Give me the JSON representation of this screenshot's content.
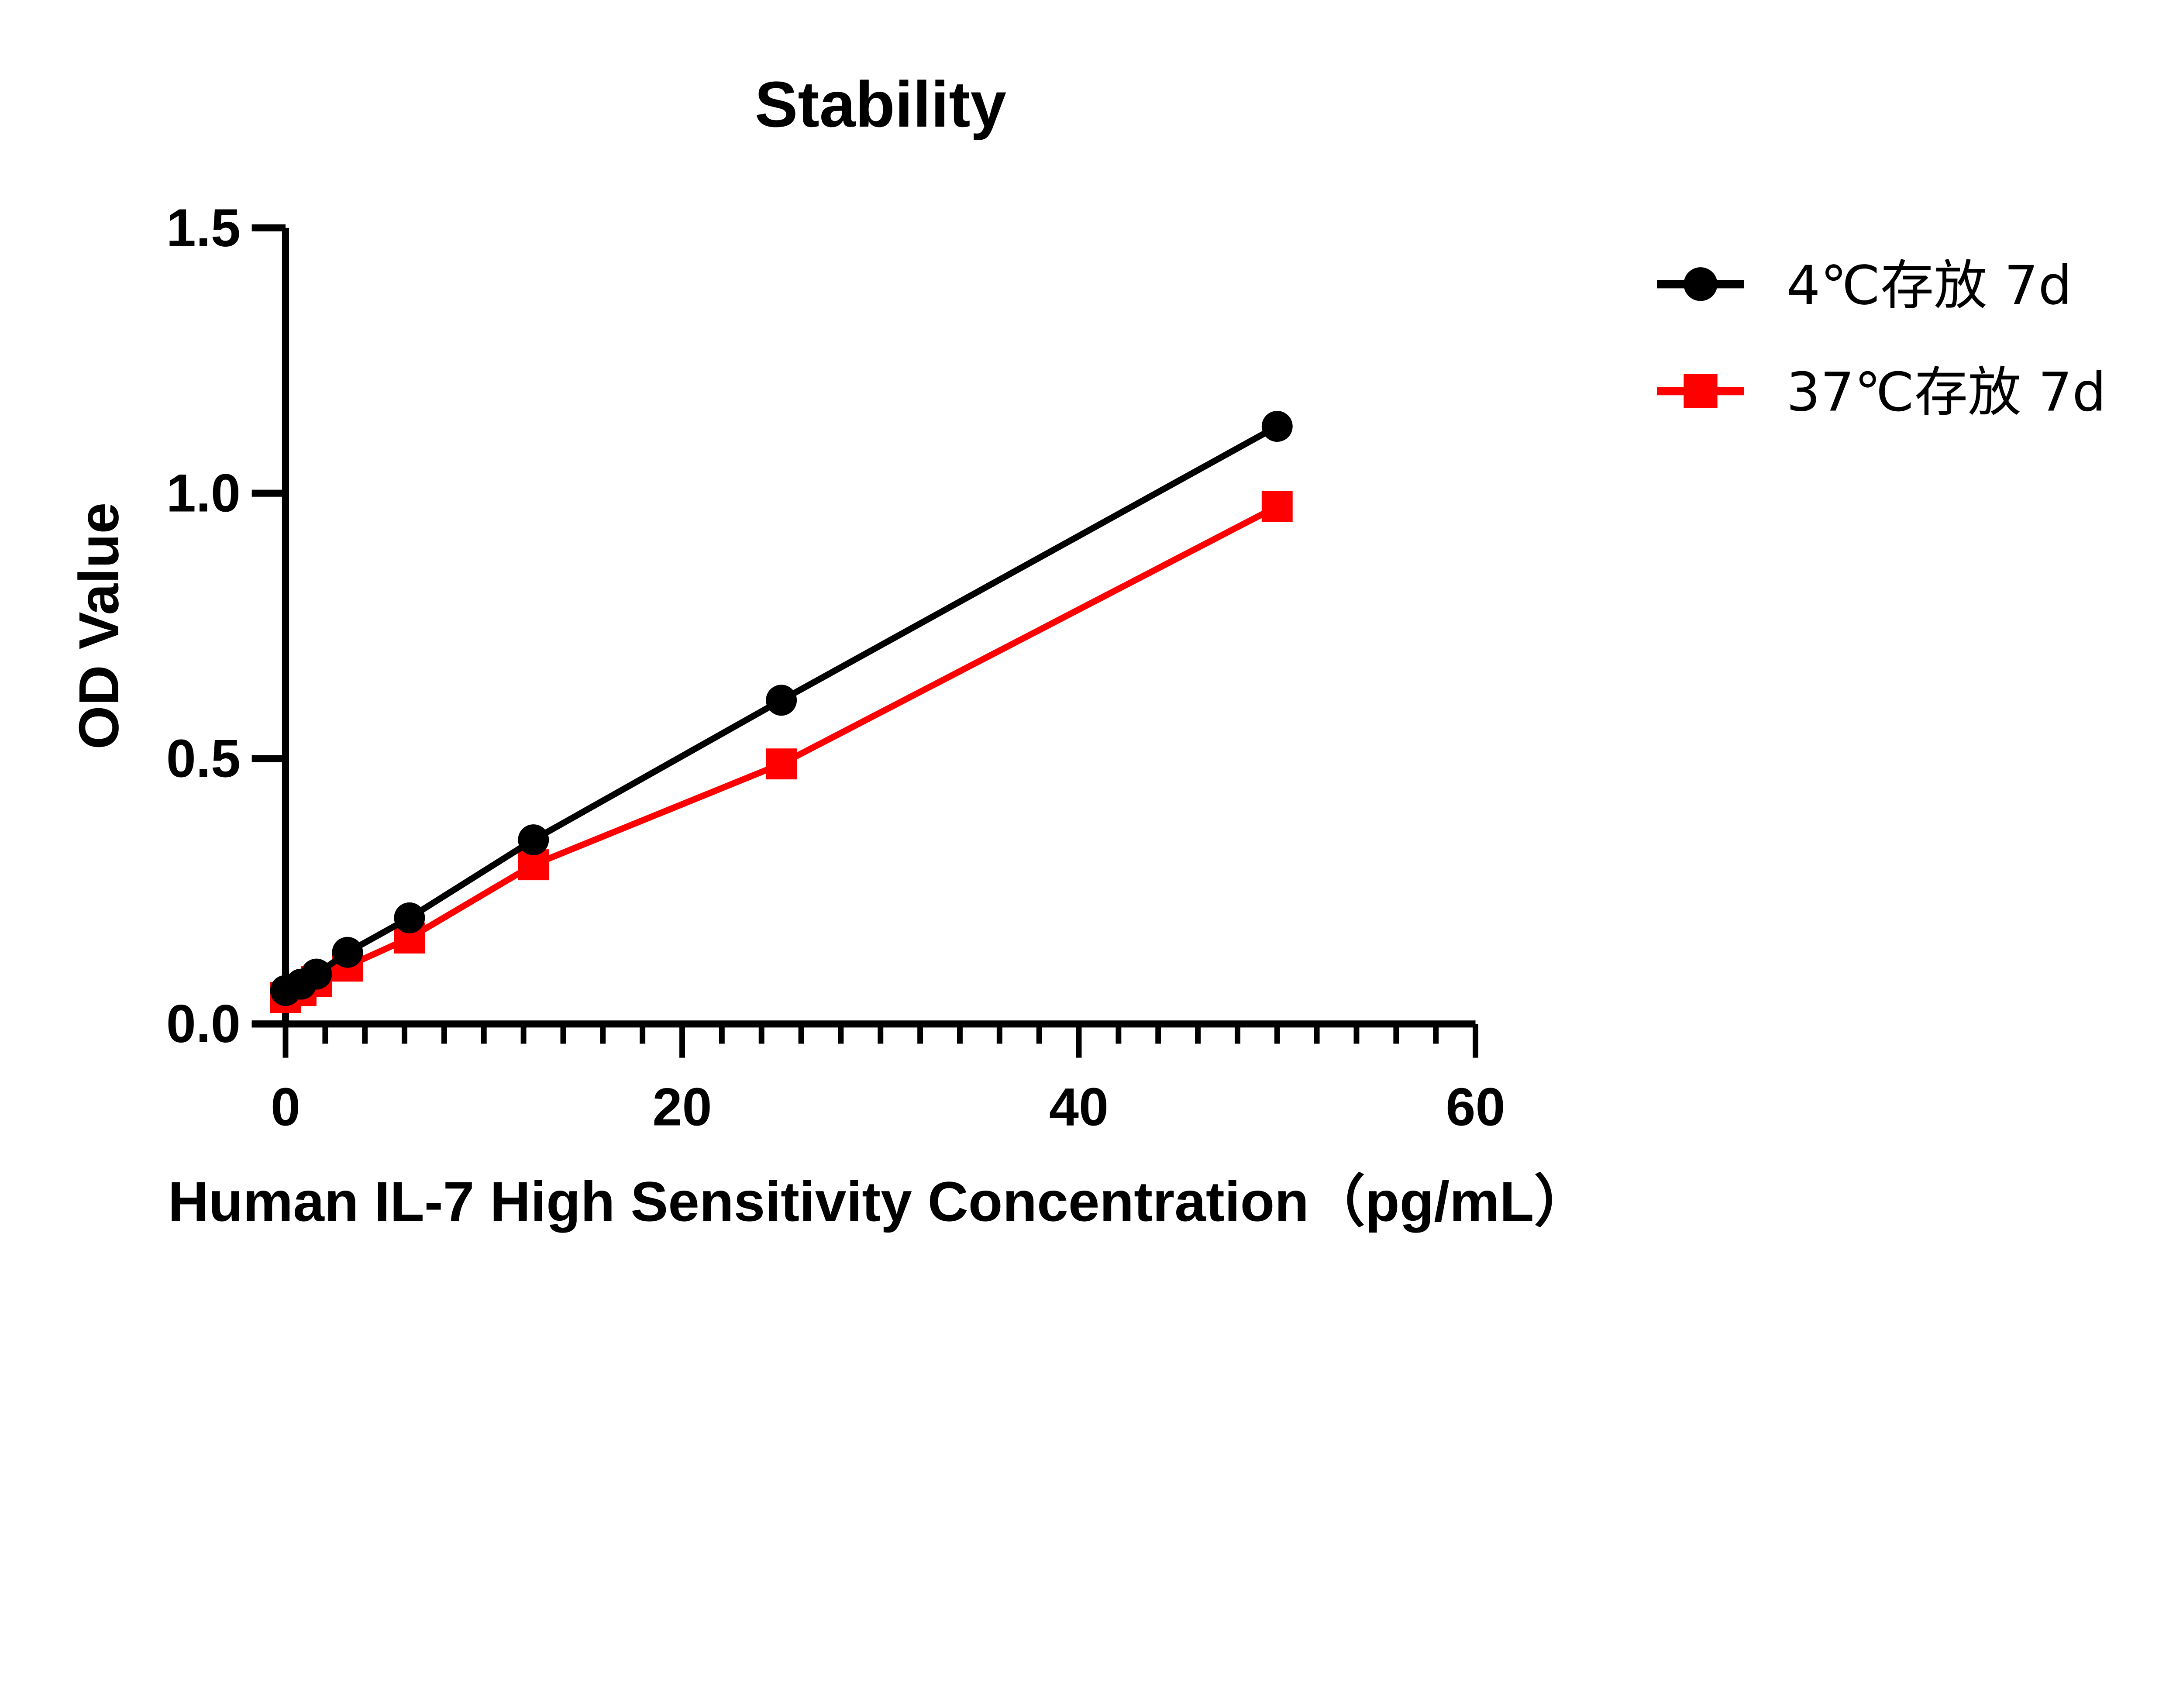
{
  "chart_data": {
    "type": "line",
    "title": "Stability",
    "xlabel": "Human IL-7 High Sensitivity Concentration（pg/mL）",
    "ylabel": "OD Value",
    "xlim": [
      0,
      60
    ],
    "ylim": [
      0,
      1.5
    ],
    "x_ticks": [
      0,
      20,
      40,
      60
    ],
    "x_tick_labels": [
      "0",
      "20",
      "40",
      "60"
    ],
    "x_minor_step": 2,
    "y_ticks": [
      0,
      0.5,
      1.0,
      1.5
    ],
    "y_tick_labels": [
      "0.0",
      "0.5",
      "1.0",
      "1.5"
    ],
    "grid": false,
    "legend_position": "top-right",
    "x": [
      0,
      0.78,
      1.56,
      3.125,
      6.25,
      12.5,
      25,
      50
    ],
    "series": [
      {
        "name": "4℃存放 7d",
        "color": "#000000",
        "marker": "circle",
        "values": [
          0.063,
          0.075,
          0.094,
          0.135,
          0.2,
          0.347,
          0.61,
          1.126
        ]
      },
      {
        "name": "37℃存放 7d",
        "color": "#ff0000",
        "marker": "square",
        "values": [
          0.05,
          0.063,
          0.08,
          0.109,
          0.162,
          0.3,
          0.49,
          0.975
        ]
      }
    ]
  }
}
